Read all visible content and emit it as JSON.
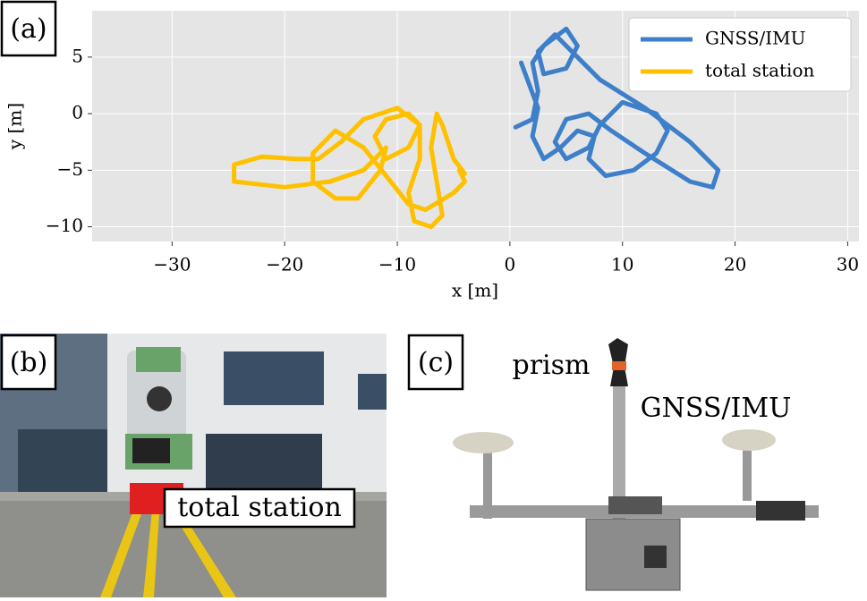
{
  "chart_data": {
    "type": "line",
    "xlabel": "x [m]",
    "ylabel": "y [m]",
    "xlim": [
      -37.1,
      31.0
    ],
    "ylim": [
      -11.3,
      9.1
    ],
    "xticks": [
      {
        "value": -30,
        "label": "−30"
      },
      {
        "value": -20,
        "label": "−20"
      },
      {
        "value": -10,
        "label": "−10"
      },
      0,
      10,
      20,
      30
    ],
    "yticks": [
      5,
      0,
      {
        "value": -5,
        "label": "−5"
      },
      {
        "value": -10,
        "label": "−10"
      }
    ],
    "grid": true,
    "legend": "upper right",
    "series": [
      {
        "name": "GNSS/IMU",
        "color": "#3d7fc9",
        "x": [
          0.5,
          2,
          2.5,
          2,
          3,
          5,
          6,
          5,
          3,
          2.5,
          4,
          6.5,
          8,
          12,
          16,
          18.5,
          18,
          16,
          12,
          9,
          7,
          5,
          4,
          5,
          7,
          8,
          10,
          13,
          14,
          13,
          11,
          8.5,
          7,
          7.5,
          6,
          4.5,
          3,
          2,
          2.5,
          1
        ],
        "values": [
          -1.2,
          -0.5,
          2,
          4.5,
          6,
          7.5,
          6,
          4,
          3.5,
          5.5,
          7,
          4.5,
          3,
          0.5,
          -2.5,
          -5,
          -6.5,
          -6,
          -3.5,
          -1.5,
          0,
          -0.5,
          -2.5,
          -4,
          -3,
          -1,
          1,
          0,
          -1.5,
          -3.5,
          -5,
          -5.5,
          -4,
          -2,
          -1.5,
          -3,
          -4,
          -2,
          0.5,
          4.5
        ]
      },
      {
        "name": "total station",
        "color": "#ffc000",
        "x": [
          -4,
          -5,
          -6,
          -6.5,
          -7,
          -6.5,
          -6,
          -7,
          -8.5,
          -9,
          -8,
          -8,
          -9,
          -11,
          -12,
          -11,
          -9,
          -8,
          -10,
          -13,
          -15,
          -17,
          -19,
          -22,
          -24.5,
          -24.5,
          -20,
          -16,
          -13,
          -11,
          -11.5,
          -13.5,
          -15.5,
          -17.5,
          -17.5,
          -15.5,
          -13,
          -11,
          -9,
          -7.5,
          -5,
          -4,
          -4.5
        ],
        "values": [
          -5.3,
          -4,
          -1,
          0,
          -3,
          -6,
          -9,
          -10,
          -9.5,
          -7,
          -4,
          -1,
          0,
          -0.5,
          -2,
          -4,
          -3,
          -1,
          0.5,
          -0.5,
          -2.5,
          -4,
          -4,
          -3.8,
          -4.5,
          -6,
          -6.5,
          -6,
          -5,
          -3,
          -5,
          -7.5,
          -7.5,
          -6,
          -3.5,
          -1.5,
          -3,
          -5.5,
          -8,
          -8.5,
          -7,
          -6,
          -5
        ]
      }
    ]
  },
  "panel_labels": [
    "(a)",
    "(b)",
    "(c)"
  ],
  "photo_b": {
    "label": "total station"
  },
  "photo_c": {
    "labels": [
      "prism",
      "GNSS/IMU"
    ]
  }
}
